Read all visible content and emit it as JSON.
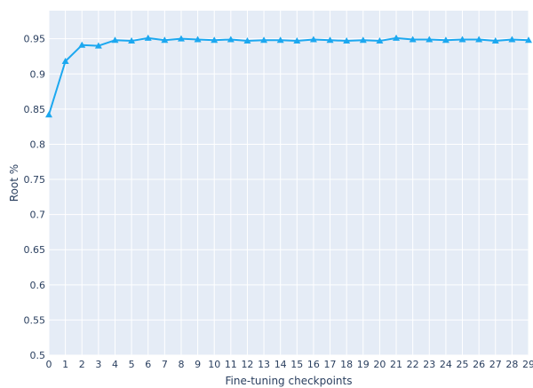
{
  "chart_data": {
    "type": "line",
    "title": "",
    "xlabel": "Fine-tuning checkpoints",
    "ylabel": "Root %",
    "x": [
      0,
      1,
      2,
      3,
      4,
      5,
      6,
      7,
      8,
      9,
      10,
      11,
      12,
      13,
      14,
      15,
      16,
      17,
      18,
      19,
      20,
      21,
      22,
      23,
      24,
      25,
      26,
      27,
      28,
      29
    ],
    "xlim": [
      0,
      29
    ],
    "ylim": [
      0.5,
      0.99
    ],
    "yticks": [
      0.5,
      0.55,
      0.6,
      0.65,
      0.7,
      0.75,
      0.8,
      0.85,
      0.9,
      0.95
    ],
    "ytick_labels": [
      "0.5",
      "0.55",
      "0.6",
      "0.65",
      "0.7",
      "0.75",
      "0.8",
      "0.85",
      "0.9",
      "0.95"
    ],
    "grid": true,
    "legend": "none",
    "colors": {
      "plot_bg": "#e5ecf6",
      "grid": "#ffffff",
      "line": "#1ca8f0",
      "text": "#2a3f5f"
    },
    "series": [
      {
        "marker": "triangle-up",
        "values": [
          0.842,
          0.918,
          0.941,
          0.94,
          0.948,
          0.947,
          0.951,
          0.948,
          0.95,
          0.949,
          0.948,
          0.949,
          0.947,
          0.948,
          0.948,
          0.947,
          0.949,
          0.948,
          0.947,
          0.948,
          0.947,
          0.951,
          0.949,
          0.949,
          0.948,
          0.949,
          0.949,
          0.947,
          0.949,
          0.948
        ]
      }
    ]
  }
}
